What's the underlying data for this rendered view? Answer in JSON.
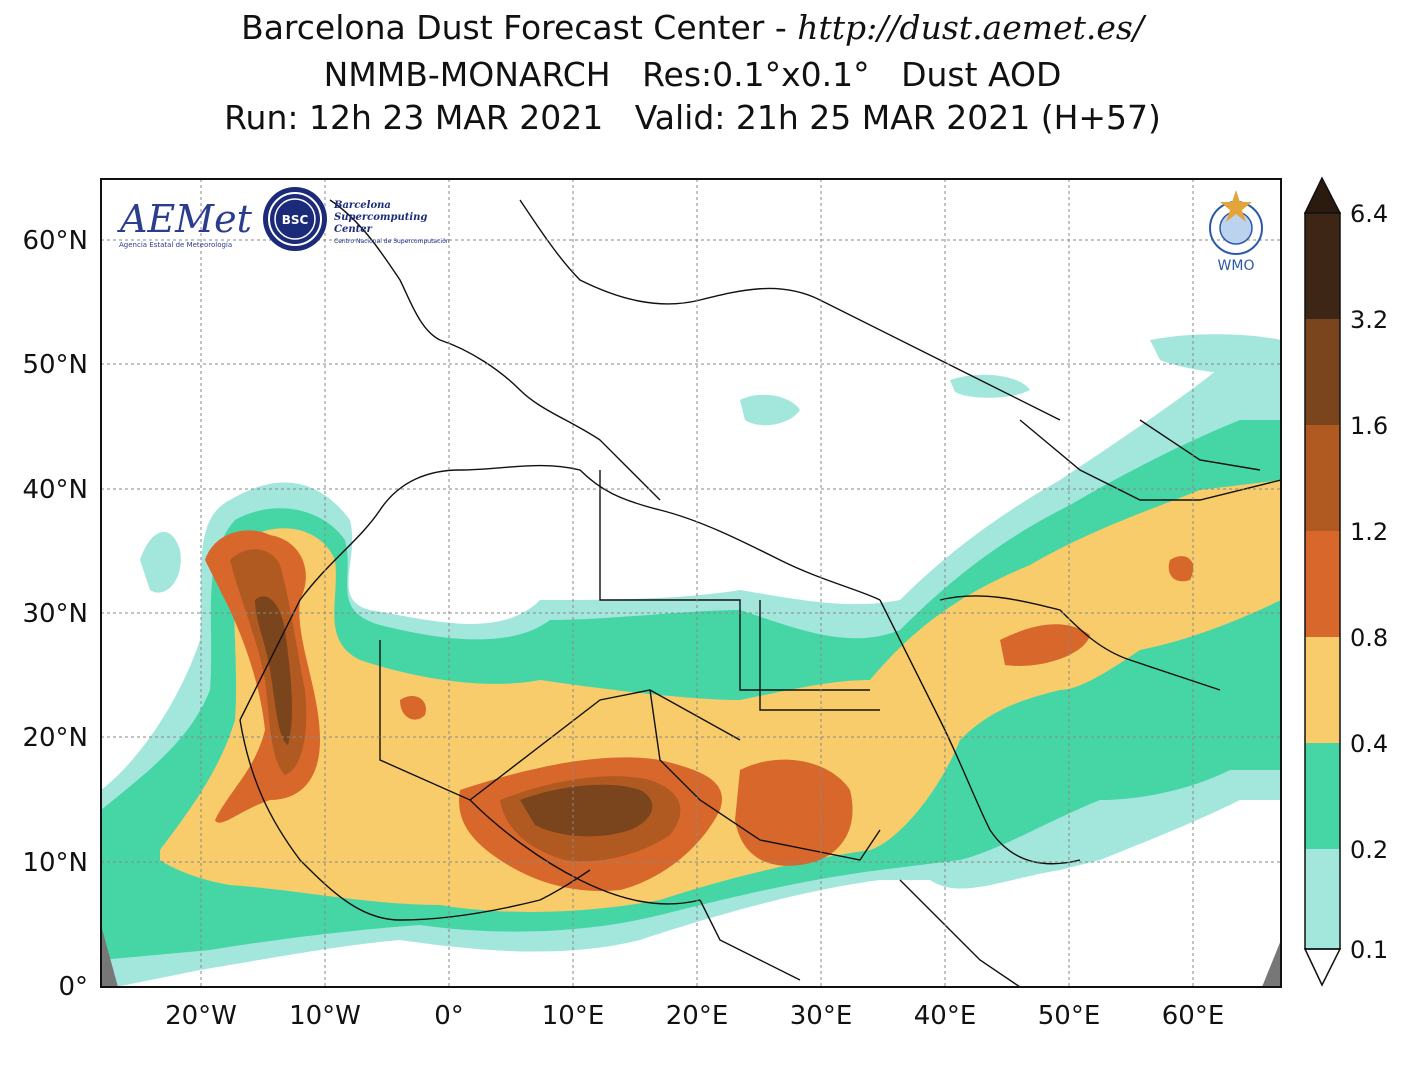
{
  "title": {
    "line1_prefix": "Barcelona Dust Forecast Center - ",
    "line1_url": "http://dust.aemet.es/",
    "line2": "NMMB-MONARCH   Res:0.1°x0.1°   Dust AOD",
    "line3": "Run: 12h 23 MAR 2021   Valid: 21h 25 MAR 2021 (H+57)"
  },
  "axes": {
    "lat_labels": [
      "60°N",
      "50°N",
      "40°N",
      "30°N",
      "20°N",
      "10°N",
      "0°"
    ],
    "lon_labels": [
      "20°W",
      "10°W",
      "0°",
      "10°E",
      "20°E",
      "30°E",
      "40°E",
      "50°E",
      "60°E"
    ],
    "lat_range": [
      0,
      65
    ],
    "lon_range": [
      -27,
      67
    ],
    "grid": true
  },
  "colorbar": {
    "levels": [
      "0.1",
      "0.2",
      "0.4",
      "0.8",
      "1.2",
      "1.6",
      "3.2",
      "6.4"
    ],
    "colors": [
      "#a3e6dc",
      "#46d6a6",
      "#f8cc6a",
      "#d8672c",
      "#b05a22",
      "#7a451c",
      "#3e2616",
      "#2a1a10"
    ],
    "extend": "both"
  },
  "logos": {
    "aemet": "AEMet",
    "aemet_sub": "Agencia Estatal de Meteorología",
    "bsc": "BSC",
    "bsc_lines": [
      "Barcelona",
      "Supercomputing",
      "Center"
    ],
    "bsc_sub": "Centro Nacional de Supercomputación",
    "wmo": "WMO"
  },
  "colors": {
    "ocean": "#ffffff",
    "border": "#111111",
    "grid": "#888888"
  }
}
